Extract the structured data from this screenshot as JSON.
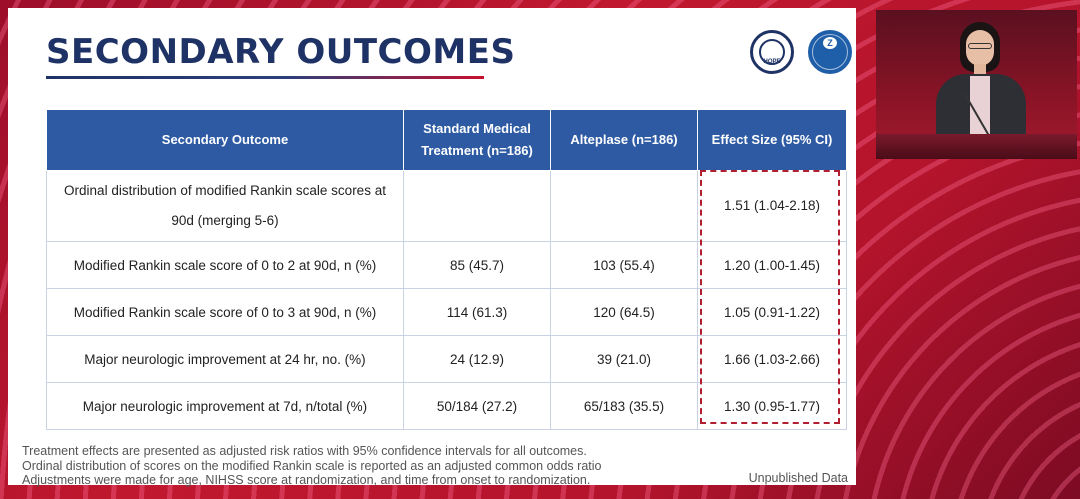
{
  "slide": {
    "title": "SECONDARY OUTCOMES",
    "logos": [
      {
        "name": "hope-logo",
        "text": "HOPE"
      },
      {
        "name": "hospital-logo",
        "text": "浙医二院"
      }
    ]
  },
  "table": {
    "headers": [
      "Secondary Outcome",
      "Standard Medical Treatment (n=186)",
      "Alteplase (n=186)",
      "Effect Size (95% CI)"
    ],
    "rows": [
      {
        "outcome": "Ordinal distribution of modified Rankin scale scores at 90d (merging 5-6)",
        "smt": "",
        "alteplase": "",
        "effect": "1.51 (1.04-2.18)"
      },
      {
        "outcome": "Modified Rankin scale score of 0 to 2 at 90d, n (%)",
        "smt": "85 (45.7)",
        "alteplase": "103 (55.4)",
        "effect": "1.20 (1.00-1.45)"
      },
      {
        "outcome": "Modified Rankin scale score of 0 to 3 at 90d, n (%)",
        "smt": "114 (61.3)",
        "alteplase": "120 (64.5)",
        "effect": "1.05 (0.91-1.22)"
      },
      {
        "outcome": "Major neurologic improvement at 24 hr, no. (%)",
        "smt": "24 (12.9)",
        "alteplase": "39 (21.0)",
        "effect": "1.66 (1.03-2.66)"
      },
      {
        "outcome": "Major neurologic improvement at 7d, n/total (%)",
        "smt": "50/184 (27.2)",
        "alteplase": "65/183 (35.5)",
        "effect": "1.30 (0.95-1.77)"
      }
    ]
  },
  "footnotes": [
    "Treatment effects are presented as adjusted risk ratios with 95% confidence intervals for all outcomes.",
    "Ordinal distribution of scores on the modified Rankin scale is reported as an adjusted common odds ratio",
    "Adjustments were made for age, NIHSS score at randomization, and time from onset to randomization."
  ],
  "unpublished_label": "Unpublished Data",
  "colors": {
    "title": "#1e3266",
    "header_bg": "#2d5aa3",
    "highlight_border": "#b01e2f",
    "background": "#b0122a"
  }
}
